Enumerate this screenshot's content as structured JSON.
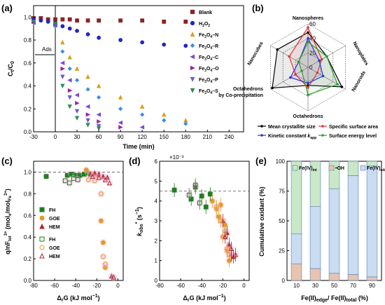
{
  "chart_data": [
    {
      "panel": "(a)",
      "type": "scatter",
      "xlabel": "Time (min)",
      "ylabel": "C_t/C_0",
      "xlim": [
        -30,
        260
      ],
      "ylim": [
        0,
        1.1
      ],
      "xticks": [
        "-30",
        "0",
        "30",
        "60",
        "90",
        "120",
        "150",
        "180",
        "210",
        "240"
      ],
      "yticks": [
        "0.0",
        "0.2",
        "0.4",
        "0.6",
        "0.8",
        "1.0"
      ],
      "annotation": "Ads",
      "series": [
        {
          "name": "Blank",
          "color": "#8b2323",
          "marker": "square",
          "x": [
            -30,
            -20,
            -10,
            0,
            10,
            20,
            30,
            45,
            60,
            90,
            120,
            150,
            180
          ],
          "y": [
            0.99,
            0.99,
            0.98,
            0.98,
            0.98,
            0.98,
            0.97,
            0.97,
            0.97,
            0.97,
            0.97,
            0.96,
            0.96
          ]
        },
        {
          "name": "H2O2",
          "color": "#2323c8",
          "marker": "circle",
          "x": [
            -30,
            -20,
            -10,
            0,
            10,
            20,
            30,
            45,
            60,
            90,
            120,
            150,
            180
          ],
          "y": [
            0.98,
            0.97,
            0.96,
            0.95,
            0.92,
            0.9,
            0.88,
            0.85,
            0.82,
            0.8,
            0.78,
            0.76,
            0.75
          ]
        },
        {
          "name": "Fe3O4-N",
          "color": "#d4a017",
          "marker": "triangle",
          "x": [
            -30,
            0,
            10,
            20,
            30,
            45,
            60,
            90,
            120,
            150,
            180
          ],
          "y": [
            0.96,
            0.93,
            0.78,
            0.65,
            0.55,
            0.48,
            0.4,
            0.3,
            0.22,
            0.15,
            0.1
          ]
        },
        {
          "name": "Fe3O4-R",
          "color": "#3a8ee6",
          "marker": "diamond",
          "x": [
            -30,
            0,
            10,
            20,
            30,
            45,
            60,
            90,
            120,
            150,
            180
          ],
          "y": [
            0.95,
            0.92,
            0.7,
            0.55,
            0.45,
            0.37,
            0.3,
            0.2,
            0.15,
            0.1,
            0.07
          ]
        },
        {
          "name": "Fe3O4-C",
          "color": "#7a4bd6",
          "marker": "triangle-left",
          "x": [
            -30,
            0,
            10,
            20,
            30,
            45,
            60,
            90,
            120
          ],
          "y": [
            0.95,
            0.93,
            0.6,
            0.45,
            0.32,
            0.22,
            0.15,
            0.08,
            0.04
          ]
        },
        {
          "name": "Fe3O4-O",
          "color": "#a020a0",
          "marker": "triangle-right",
          "x": [
            -30,
            0,
            10,
            20,
            30,
            45,
            60,
            90
          ],
          "y": [
            0.96,
            0.94,
            0.55,
            0.36,
            0.25,
            0.15,
            0.09,
            0.04
          ]
        },
        {
          "name": "Fe3O4-P",
          "color": "#6a5acd",
          "marker": "triangle-down",
          "x": [
            -30,
            0,
            10,
            20,
            30,
            45,
            60
          ],
          "y": [
            0.96,
            0.94,
            0.48,
            0.3,
            0.18,
            0.1,
            0.05
          ]
        },
        {
          "name": "Fe3O4-S",
          "color": "#2e8b57",
          "marker": "triangle-down",
          "x": [
            -30,
            0,
            10,
            20,
            30,
            45,
            60
          ],
          "y": [
            0.96,
            0.94,
            0.4,
            0.22,
            0.12,
            0.06,
            0.03
          ]
        }
      ]
    },
    {
      "panel": "(b)",
      "type": "radar",
      "axes": [
        "Nanospheres",
        "Nanoplates",
        "Nanorods",
        "Octahedrons",
        "Octahedrons by Co-precipitation",
        "Nanocubes"
      ],
      "rticks": [
        "0",
        "20",
        "40",
        "60"
      ],
      "rmax": 60,
      "series": [
        {
          "name": "Mean crystallite size",
          "color": "#000000",
          "values": [
            48,
            30,
            54,
            25,
            57,
            49
          ]
        },
        {
          "name": "Specific surface area",
          "color": "#e83232",
          "values": [
            55,
            22,
            15,
            28,
            20,
            30
          ]
        },
        {
          "name": "Kinetic constant k_app",
          "color": "#2f2fe0",
          "values": [
            40,
            18,
            24,
            22,
            28,
            15
          ]
        },
        {
          "name": "Surface energy level",
          "color": "#2ca02c",
          "values": [
            35,
            30,
            47,
            38,
            10,
            15
          ]
        }
      ]
    },
    {
      "panel": "(c)",
      "type": "scatter",
      "xlabel": "Δ_rG (kJ mol⁻¹)",
      "ylabel": "q/nF_tot^3+ (mol_e⁻/mol_Fe^3+)",
      "xlim": [
        -80,
        5
      ],
      "ylim": [
        0,
        1.1
      ],
      "xticks": [
        "-80",
        "-60",
        "-40",
        "-20",
        "0"
      ],
      "yticks": [
        "0.0",
        "0.2",
        "0.4",
        "0.6",
        "0.8",
        "1.0"
      ],
      "reference_line": 1.0,
      "series": [
        {
          "name": "FH",
          "color": "#1e7f1e",
          "marker": "square",
          "filled": true,
          "x": [
            -68,
            -48,
            -44,
            -40,
            -36,
            -32,
            -28,
            -26
          ],
          "y": [
            0.96,
            0.97,
            0.98,
            0.97,
            0.97,
            0.98,
            0.99,
            0.98
          ]
        },
        {
          "name": "GOE",
          "color": "#e69a1c",
          "marker": "circle",
          "filled": true,
          "x": [
            -30,
            -24,
            -20,
            -16,
            -14,
            -12
          ],
          "y": [
            1.02,
            0.98,
            0.97,
            0.55,
            0.35,
            0.12
          ]
        },
        {
          "name": "HEM",
          "color": "#a52a2a",
          "marker": "triangle",
          "filled": true,
          "x": [
            -26,
            -22,
            -18,
            -14,
            -10,
            -6
          ],
          "y": [
            0.98,
            0.99,
            0.98,
            0.96,
            0.95,
            0.04
          ]
        },
        {
          "name": "FH",
          "color": "#1e7f1e",
          "marker": "square",
          "filled": false,
          "x": [
            -50,
            -46,
            -42,
            -38
          ],
          "y": [
            0.92,
            0.9,
            0.94,
            0.93
          ]
        },
        {
          "name": "GOE",
          "color": "#e69a1c",
          "marker": "circle",
          "filled": false,
          "x": [
            -28,
            -22,
            -16,
            -14,
            -12
          ],
          "y": [
            0.93,
            0.92,
            0.8,
            0.22,
            0.15
          ]
        },
        {
          "name": "HEM",
          "color": "#a52a2a",
          "marker": "triangle",
          "filled": false,
          "x": [
            -24,
            -18,
            -12,
            -8,
            -4
          ],
          "y": [
            0.96,
            0.95,
            0.93,
            0.9,
            0.03
          ]
        }
      ]
    },
    {
      "panel": "(d)",
      "type": "scatter",
      "xlabel": "Δ_rG (kJ mol⁻¹)",
      "ylabel": "k*_obs (s⁻¹)",
      "multiplier": "×10⁻³",
      "xlim": [
        -80,
        5
      ],
      "ylim": [
        0,
        6
      ],
      "xticks": [
        "-80",
        "-60",
        "-40",
        "-20",
        "0"
      ],
      "yticks": [
        "0",
        "1",
        "2",
        "3",
        "4",
        "5",
        "6"
      ],
      "reference_line": 4.5,
      "series": [
        {
          "name": "FH",
          "color": "#1e7f1e",
          "marker": "square",
          "filled": true,
          "x": [
            -66,
            -50,
            -46,
            -40,
            -36,
            -32
          ],
          "y": [
            4.55,
            4.1,
            4.7,
            4.25,
            3.7,
            4.35
          ]
        },
        {
          "name": "GOE",
          "color": "#e69a1c",
          "marker": "circle",
          "filled": true,
          "x": [
            -30,
            -26,
            -24,
            -22,
            -20,
            -18,
            -16,
            -14
          ],
          "y": [
            4.0,
            3.6,
            3.2,
            3.8,
            2.2,
            2.8,
            1.5,
            1.0
          ]
        },
        {
          "name": "HEM",
          "color": "#a52a2a",
          "marker": "triangle",
          "filled": true,
          "x": [
            -20,
            -16,
            -14,
            -12,
            -10
          ],
          "y": [
            3.0,
            2.4,
            1.8,
            1.3,
            1.2
          ]
        },
        {
          "name": "FH",
          "color": "#1e7f1e",
          "marker": "square",
          "filled": false,
          "x": [
            -52,
            -46,
            -42
          ],
          "y": [
            4.3,
            4.8,
            3.9
          ]
        },
        {
          "name": "GOE",
          "color": "#e69a1c",
          "marker": "circle",
          "filled": false,
          "x": [
            -26,
            -22,
            -18,
            -16,
            -14
          ],
          "y": [
            3.7,
            3.0,
            2.5,
            1.6,
            1.3
          ]
        },
        {
          "name": "HEM",
          "color": "#a52a2a",
          "marker": "triangle",
          "filled": false,
          "x": [
            -18,
            -12,
            -8
          ],
          "y": [
            2.2,
            1.6,
            1.3
          ]
        }
      ]
    },
    {
      "panel": "(e)",
      "type": "bar",
      "stacked": true,
      "xlabel": "Fe(II)_edge/ Fe(II)_total (%)",
      "ylabel": "Cumulative oxidant (%)",
      "ylim": [
        0,
        100
      ],
      "yticks": [
        "0",
        "25",
        "50",
        "75",
        "100"
      ],
      "categories": [
        "10",
        "30",
        "50",
        "70",
        "90"
      ],
      "series": [
        {
          "name": "•OH",
          "color": "#e8c4b0",
          "values": [
            14,
            10,
            6,
            5,
            3
          ]
        },
        {
          "name": "Fe(IV)_edge",
          "color": "#c9dcf2",
          "values": [
            25,
            52,
            71,
            83,
            93
          ]
        },
        {
          "name": "Fe(IV)_int",
          "color": "#c8e8c8",
          "values": [
            61,
            38,
            23,
            12,
            4
          ]
        }
      ]
    }
  ]
}
